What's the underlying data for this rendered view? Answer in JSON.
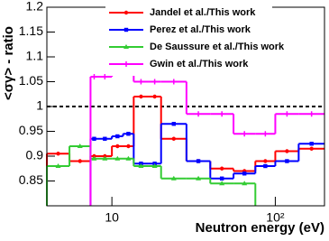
{
  "chart_data": {
    "type": "step-histogram",
    "x_label": "Neutron energy (eV)",
    "y_label": "<σγ> - ratio",
    "log_x": true,
    "reference_line": 1,
    "bins": [
      4,
      5.5,
      7.4,
      8.2,
      10,
      11.7,
      13.6,
      16.7,
      20,
      28.6,
      40,
      55.5,
      75.5,
      100,
      139,
      200
    ],
    "series": [
      {
        "name": "Jandel et al./This work",
        "color": "#ff0000",
        "marker": "circle",
        "values": [
          0.905,
          0.89,
          0.9,
          0.9,
          0.92,
          0.92,
          1.02,
          1.02,
          0.935,
          0.89,
          0.875,
          0.87,
          0.89,
          0.91,
          0.915
        ]
      },
      {
        "name": "Perez et al./This work",
        "color": "#0000ff",
        "marker": "square",
        "values": [
          null,
          null,
          0.935,
          0.935,
          0.94,
          0.945,
          0.885,
          0.885,
          0.965,
          0.89,
          0.855,
          0.865,
          0.88,
          0.89,
          0.925
        ]
      },
      {
        "name": "De Saussure et al./This work",
        "color": "#33cc33",
        "marker": "triangle",
        "values": [
          0.88,
          0.92,
          0.895,
          0.895,
          0.895,
          0.895,
          0.88,
          0.88,
          0.855,
          0.855,
          0.845,
          0.845,
          null,
          null,
          null
        ]
      },
      {
        "name": "Gwin et al./This work",
        "color": "#ff00ff",
        "marker": "line",
        "values": [
          null,
          null,
          1.06,
          1.06,
          1.07,
          1.07,
          1.05,
          1.05,
          1.05,
          0.985,
          0.985,
          0.945,
          0.945,
          0.985,
          0.985
        ]
      }
    ],
    "xlim": [
      4,
      200
    ],
    "xticks": [
      10,
      {
        "value": 100,
        "label": "10²"
      }
    ],
    "ylim": [
      0.8,
      1.2
    ],
    "yticks": [
      0.85,
      0.9,
      0.95,
      1,
      1.05,
      1.1,
      1.15,
      1.2
    ]
  }
}
